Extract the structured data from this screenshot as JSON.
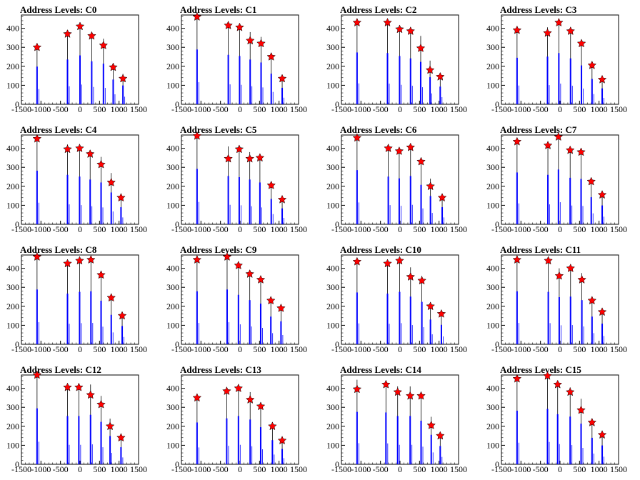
{
  "chart_data": {
    "type": "bar",
    "xlim": [
      -1500,
      1500
    ],
    "ylim": [
      0,
      470
    ],
    "xticks": [
      -1500,
      -1000,
      -500,
      0,
      500,
      1000,
      1500
    ],
    "xtick_labels": [
      "-1500",
      "-1000",
      "-500",
      "0",
      "500",
      "1000",
      "1500"
    ],
    "colors": {
      "bar": "#0000ff",
      "marker": "#ff0000"
    },
    "panels": [
      {
        "title": "Address Levels: C0",
        "yticks": [
          0,
          100,
          200,
          300,
          400
        ],
        "peaks_x": [
          -1100,
          -320,
          0,
          300,
          600,
          850,
          1100
        ],
        "peaks_y": [
          300,
          370,
          410,
          360,
          310,
          195,
          135
        ],
        "bars": [
          [
            -1100,
            320
          ],
          [
            -320,
            380
          ],
          [
            0,
            415
          ],
          [
            300,
            365
          ],
          [
            600,
            345
          ],
          [
            850,
            210
          ],
          [
            1100,
            160
          ]
        ]
      },
      {
        "title": "Address Levels: C1",
        "yticks": [
          0,
          100,
          200,
          300,
          400
        ],
        "peaks_x": [
          -1100,
          -300,
          -10,
          260,
          540,
          800,
          1080
        ],
        "peaks_y": [
          460,
          415,
          405,
          335,
          320,
          250,
          135
        ],
        "bars": [
          [
            -1100,
            465
          ],
          [
            -300,
            420
          ],
          [
            -10,
            410
          ],
          [
            260,
            380
          ],
          [
            540,
            355
          ],
          [
            800,
            260
          ],
          [
            1080,
            140
          ]
        ]
      },
      {
        "title": "Address Levels: C2",
        "yticks": [
          0,
          100,
          200,
          300,
          400
        ],
        "peaks_x": [
          -1100,
          -320,
          -10,
          270,
          530,
          770,
          1030
        ],
        "peaks_y": [
          430,
          430,
          395,
          385,
          295,
          180,
          145
        ],
        "bars": [
          [
            -1100,
            440
          ],
          [
            -320,
            435
          ],
          [
            -10,
            410
          ],
          [
            270,
            390
          ],
          [
            530,
            360
          ],
          [
            770,
            230
          ],
          [
            1030,
            150
          ]
        ]
      },
      {
        "title": "Address Levels: C3",
        "yticks": [
          0,
          100,
          200,
          300,
          400
        ],
        "peaks_x": [
          -1100,
          -320,
          -30,
          270,
          550,
          820,
          1080
        ],
        "peaks_y": [
          390,
          375,
          430,
          385,
          320,
          205,
          130
        ],
        "bars": [
          [
            -1100,
            395
          ],
          [
            -320,
            405
          ],
          [
            -30,
            435
          ],
          [
            270,
            390
          ],
          [
            550,
            330
          ],
          [
            820,
            215
          ],
          [
            1080,
            135
          ]
        ]
      },
      {
        "title": "Address Levels: C4",
        "yticks": [
          0,
          100,
          200,
          300,
          400
        ],
        "peaks_x": [
          -1100,
          -320,
          -10,
          260,
          540,
          800,
          1050
        ],
        "peaks_y": [
          450,
          395,
          400,
          370,
          315,
          220,
          140
        ],
        "bars": [
          [
            -1100,
            455
          ],
          [
            -320,
            420
          ],
          [
            -10,
            405
          ],
          [
            260,
            380
          ],
          [
            540,
            355
          ],
          [
            800,
            270
          ],
          [
            1050,
            145
          ]
        ]
      },
      {
        "title": "Address Levels: C5",
        "yticks": [
          0,
          100,
          200,
          300,
          400
        ],
        "peaks_x": [
          -1100,
          -300,
          -20,
          250,
          510,
          800,
          1080
        ],
        "peaks_y": [
          465,
          345,
          395,
          345,
          350,
          205,
          130
        ],
        "bars": [
          [
            -1100,
            470
          ],
          [
            -300,
            410
          ],
          [
            -20,
            400
          ],
          [
            250,
            380
          ],
          [
            510,
            355
          ],
          [
            800,
            215
          ],
          [
            1080,
            135
          ]
        ]
      },
      {
        "title": "Address Levels: C6",
        "yticks": [
          0,
          100,
          200,
          300,
          400
        ],
        "peaks_x": [
          -1100,
          -300,
          -20,
          270,
          540,
          780,
          1080
        ],
        "peaks_y": [
          455,
          400,
          385,
          405,
          330,
          200,
          140
        ],
        "bars": [
          [
            -1100,
            460
          ],
          [
            -300,
            405
          ],
          [
            -20,
            390
          ],
          [
            270,
            410
          ],
          [
            540,
            335
          ],
          [
            780,
            240
          ],
          [
            1080,
            145
          ]
        ]
      },
      {
        "title": "Address Levels: C7",
        "yticks": [
          0,
          100,
          200,
          300,
          400
        ],
        "peaks_x": [
          -1100,
          -310,
          -40,
          260,
          540,
          800,
          1080
        ],
        "peaks_y": [
          435,
          415,
          460,
          390,
          380,
          225,
          155
        ],
        "bars": [
          [
            -1100,
            440
          ],
          [
            -310,
            420
          ],
          [
            -40,
            465
          ],
          [
            260,
            395
          ],
          [
            540,
            385
          ],
          [
            800,
            230
          ],
          [
            1080,
            160
          ]
        ]
      },
      {
        "title": "Address Levels: C8",
        "yticks": [
          0,
          100,
          200,
          300,
          400
        ],
        "peaks_x": [
          -1100,
          -320,
          -10,
          280,
          540,
          800,
          1080
        ],
        "peaks_y": [
          460,
          425,
          440,
          445,
          365,
          245,
          150
        ],
        "bars": [
          [
            -1100,
            465
          ],
          [
            -320,
            430
          ],
          [
            -10,
            445
          ],
          [
            280,
            450
          ],
          [
            540,
            370
          ],
          [
            800,
            250
          ],
          [
            1080,
            155
          ]
        ]
      },
      {
        "title": "Address Levels: C9",
        "yticks": [
          0,
          100,
          200,
          300,
          400
        ],
        "peaks_x": [
          -1100,
          -330,
          -40,
          250,
          530,
          790,
          1050
        ],
        "peaks_y": [
          445,
          460,
          415,
          370,
          340,
          230,
          190
        ],
        "bars": [
          [
            -1100,
            450
          ],
          [
            -330,
            465
          ],
          [
            -40,
            420
          ],
          [
            250,
            375
          ],
          [
            530,
            345
          ],
          [
            790,
            235
          ],
          [
            1050,
            195
          ]
        ]
      },
      {
        "title": "Address Levels: C10",
        "yticks": [
          0,
          100,
          200,
          300,
          400
        ],
        "peaks_x": [
          -1100,
          -320,
          -10,
          270,
          560,
          780,
          1060
        ],
        "peaks_y": [
          435,
          425,
          440,
          355,
          335,
          200,
          160
        ],
        "bars": [
          [
            -1100,
            440
          ],
          [
            -320,
            430
          ],
          [
            -10,
            445
          ],
          [
            270,
            405
          ],
          [
            560,
            360
          ],
          [
            780,
            210
          ],
          [
            1060,
            165
          ]
        ]
      },
      {
        "title": "Address Levels: C11",
        "yticks": [
          0,
          100,
          200,
          300,
          400
        ],
        "peaks_x": [
          -1100,
          -300,
          -20,
          270,
          560,
          820,
          1080
        ],
        "peaks_y": [
          445,
          440,
          360,
          400,
          340,
          230,
          170
        ],
        "bars": [
          [
            -1100,
            450
          ],
          [
            -300,
            445
          ],
          [
            -20,
            400
          ],
          [
            270,
            405
          ],
          [
            560,
            375
          ],
          [
            820,
            235
          ],
          [
            1080,
            175
          ]
        ]
      },
      {
        "title": "Address Levels: C12",
        "yticks": [
          0,
          100,
          200,
          300,
          400
        ],
        "peaks_x": [
          -1100,
          -320,
          -30,
          270,
          540,
          770,
          1050
        ],
        "peaks_y": [
          470,
          405,
          405,
          365,
          315,
          200,
          140
        ],
        "bars": [
          [
            -1100,
            475
          ],
          [
            -320,
            410
          ],
          [
            -30,
            410
          ],
          [
            270,
            420
          ],
          [
            540,
            360
          ],
          [
            770,
            240
          ],
          [
            1050,
            145
          ]
        ]
      },
      {
        "title": "Address Levels: C13",
        "yticks": [
          0,
          100,
          200,
          300,
          400
        ],
        "peaks_x": [
          -1100,
          -340,
          -40,
          260,
          530,
          830,
          1080
        ],
        "peaks_y": [
          350,
          385,
          400,
          340,
          305,
          200,
          125
        ],
        "bars": [
          [
            -1100,
            355
          ],
          [
            -340,
            390
          ],
          [
            -40,
            410
          ],
          [
            260,
            380
          ],
          [
            530,
            315
          ],
          [
            830,
            205
          ],
          [
            1080,
            130
          ]
        ]
      },
      {
        "title": "Address Levels: C14",
        "yticks": [
          0,
          100,
          200,
          300,
          400
        ],
        "peaks_x": [
          -1100,
          -360,
          -60,
          260,
          540,
          800,
          1030
        ],
        "peaks_y": [
          395,
          420,
          380,
          360,
          360,
          205,
          150
        ],
        "bars": [
          [
            -1100,
            445
          ],
          [
            -360,
            440
          ],
          [
            -60,
            410
          ],
          [
            260,
            410
          ],
          [
            540,
            370
          ],
          [
            800,
            250
          ],
          [
            1030,
            155
          ]
        ]
      },
      {
        "title": "Address Levels: C15",
        "yticks": [
          0,
          100,
          200,
          300,
          400
        ],
        "peaks_x": [
          -1100,
          -320,
          -60,
          260,
          540,
          820,
          1080
        ],
        "peaks_y": [
          450,
          465,
          420,
          380,
          285,
          220,
          155
        ],
        "bars": [
          [
            -1100,
            455
          ],
          [
            -320,
            470
          ],
          [
            -60,
            425
          ],
          [
            260,
            405
          ],
          [
            540,
            345
          ],
          [
            820,
            225
          ],
          [
            1080,
            160
          ]
        ]
      }
    ]
  }
}
